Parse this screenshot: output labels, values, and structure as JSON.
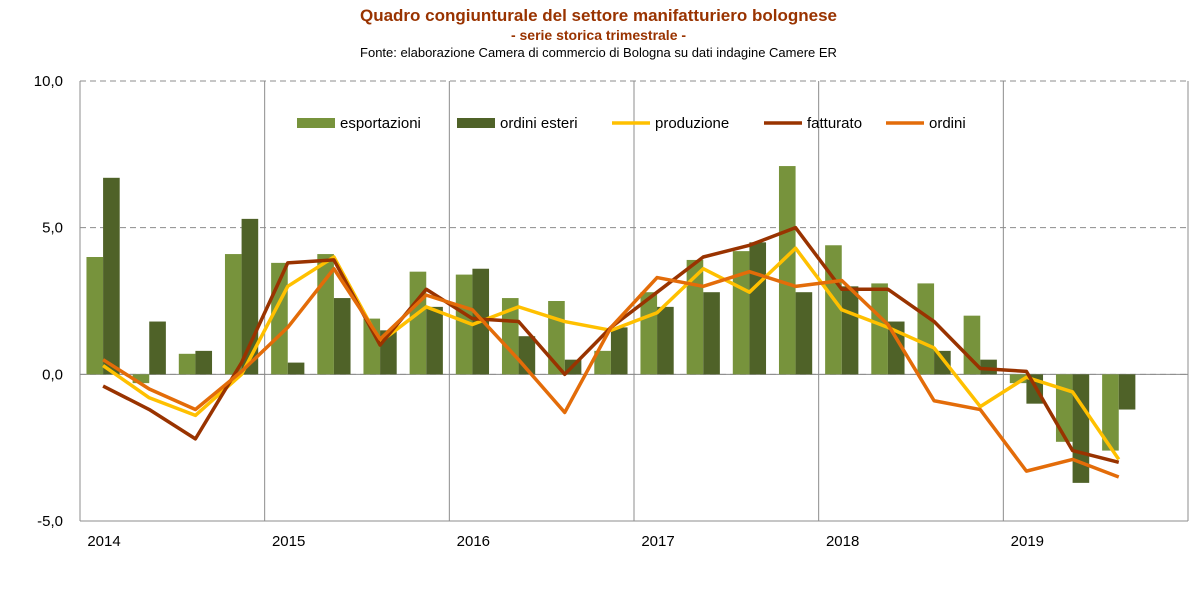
{
  "chart_data": {
    "type": "bar",
    "title": "Quadro congiunturale del settore manifatturiero bolognese",
    "subtitle": "- serie storica trimestrale -",
    "source": "Fonte: elaborazione Camera di commercio di Bologna su dati indagine Camere ER",
    "ylim": [
      -5,
      10
    ],
    "y_ticks": [
      "-5,0",
      "0,0",
      "5,0",
      "10,0"
    ],
    "year_labels": [
      "2014",
      "2015",
      "2016",
      "2017",
      "2018",
      "2019"
    ],
    "quarters_per_year": 4,
    "grid": true,
    "legend_position": "top",
    "bar_series": [
      {
        "name": "esportazioni",
        "color": "#77933C",
        "values": [
          4.0,
          -0.3,
          0.7,
          4.1,
          3.8,
          4.1,
          1.9,
          3.5,
          3.4,
          2.6,
          2.5,
          0.8,
          2.8,
          3.9,
          4.2,
          7.1,
          4.4,
          3.1,
          3.1,
          2.0,
          -0.3,
          -2.3,
          -2.6,
          null
        ]
      },
      {
        "name": "ordini esteri",
        "color": "#4F6228",
        "values": [
          6.7,
          1.8,
          0.8,
          5.3,
          0.4,
          2.6,
          1.5,
          2.3,
          3.6,
          1.3,
          0.5,
          1.6,
          2.3,
          2.8,
          4.5,
          2.8,
          3.0,
          1.8,
          0.8,
          0.5,
          -1.0,
          -3.7,
          -1.2,
          null
        ]
      }
    ],
    "line_series": [
      {
        "name": "produzione",
        "color": "#FFC000",
        "values": [
          0.3,
          -0.8,
          -1.4,
          0.0,
          3.0,
          4.0,
          1.1,
          2.3,
          1.7,
          2.3,
          1.8,
          1.5,
          2.1,
          3.6,
          2.8,
          4.3,
          2.2,
          1.6,
          0.9,
          -1.1,
          -0.1,
          -0.6,
          -2.9,
          null
        ]
      },
      {
        "name": "fatturato",
        "color": "#993300",
        "values": [
          -0.4,
          -1.2,
          -2.2,
          0.4,
          3.8,
          3.9,
          1.0,
          2.9,
          1.9,
          1.8,
          0.0,
          1.6,
          2.8,
          4.0,
          4.4,
          5.0,
          2.9,
          2.9,
          1.8,
          0.2,
          0.1,
          -2.6,
          -3.0,
          null
        ]
      },
      {
        "name": "ordini",
        "color": "#E36C09",
        "values": [
          0.5,
          -0.5,
          -1.2,
          0.1,
          1.6,
          3.6,
          1.2,
          2.7,
          2.2,
          0.5,
          -1.3,
          1.6,
          3.3,
          3.0,
          3.5,
          3.0,
          3.2,
          1.7,
          -0.9,
          -1.2,
          -3.3,
          -2.9,
          -3.5,
          null
        ]
      }
    ]
  }
}
